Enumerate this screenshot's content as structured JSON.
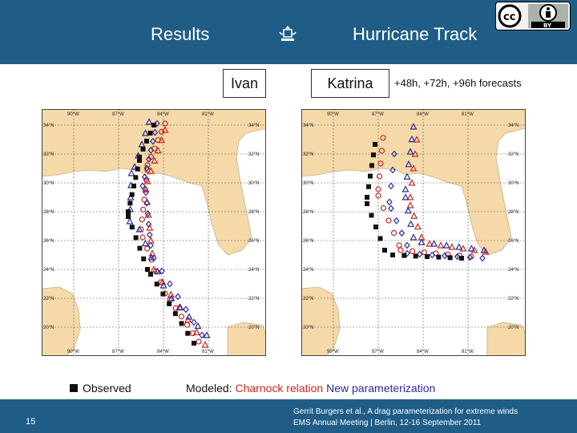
{
  "header": {
    "left_title": "Results",
    "right_title": "Hurricane Track",
    "bg_color": "#1f5d86"
  },
  "license": {
    "icon": "creative-commons-by-icon",
    "cc_text": "cc",
    "by_text": "BY"
  },
  "storms": [
    "Ivan",
    "Katrina"
  ],
  "forecast_note": "+48h, +72h, +96h forecasts",
  "legend": {
    "observed": "Observed",
    "modeled_prefix": "Modeled:",
    "charnock": "Charnock relation",
    "new_param": "New parameterization"
  },
  "colors": {
    "charnock": "#c8281e",
    "new_param": "#2a2a9a",
    "observed": "#111111",
    "land": "#f5d9a8",
    "sea": "#ffffff"
  },
  "map_axes": {
    "lon_labels": [
      "90°W",
      "87°W",
      "84°W",
      "81°W"
    ],
    "lat_labels": [
      "34°N",
      "32°N",
      "30°N",
      "28°N",
      "26°N",
      "24°N",
      "22°N",
      "20°N"
    ]
  },
  "footer": {
    "page": "15",
    "credit_line1": "Gerrit Burgers et al., A drag parameterization for extreme winds",
    "credit_line2": "EMS Annual Meeting | Berlin, 12-16 September 2011"
  }
}
